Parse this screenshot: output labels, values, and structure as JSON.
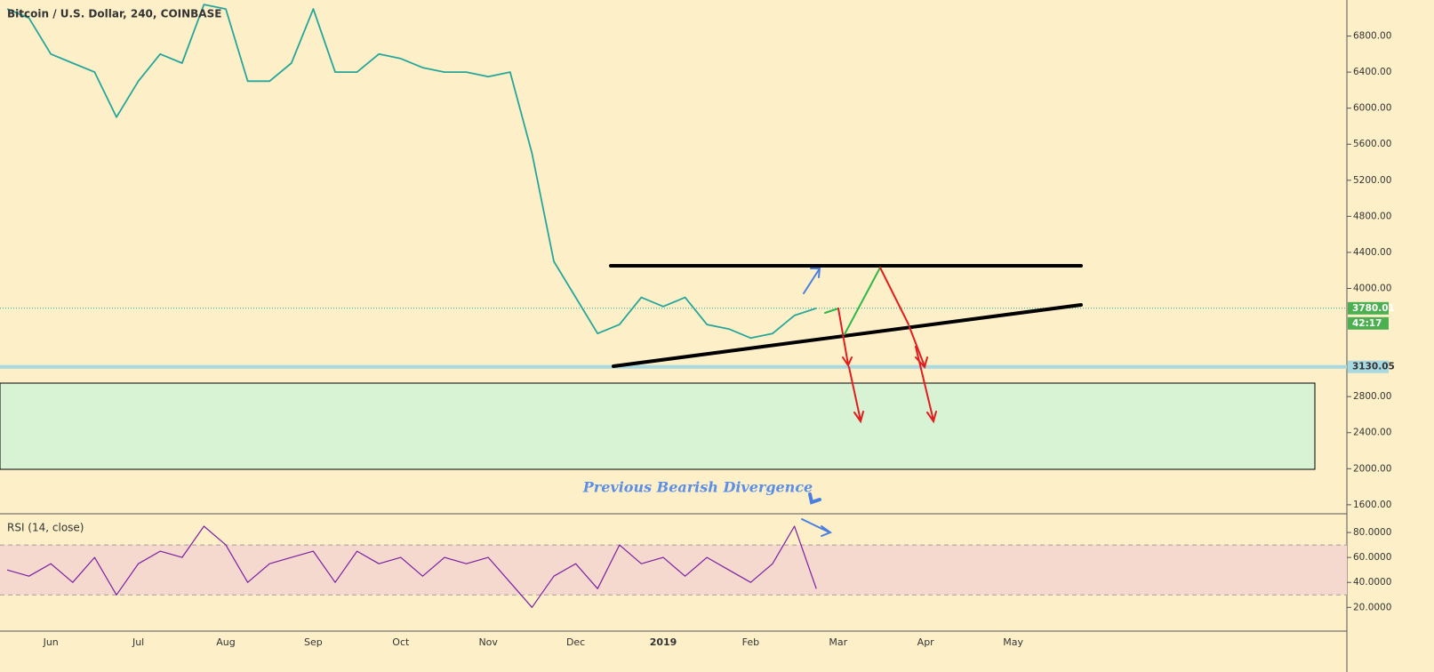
{
  "chart_data": [
    {
      "type": "line",
      "title": "Bitcoin / U.S. Dollar, 240, COINBASE",
      "categories": [
        null,
        null,
        "Jun",
        null,
        null,
        null,
        "Jul",
        null,
        null,
        null,
        "Aug",
        null,
        null,
        null,
        "Sep",
        null,
        null,
        null,
        "Oct",
        null,
        null,
        null,
        "Nov",
        null,
        null,
        null,
        "Dec",
        null,
        null,
        null,
        "2019",
        null,
        null,
        null,
        "Feb",
        null,
        null,
        null,
        "Mar",
        null,
        null,
        null,
        "Apr",
        null,
        null,
        null,
        "May",
        null,
        null,
        null
      ],
      "values": [
        7100,
        7000,
        6600,
        6500,
        6400,
        5900,
        6300,
        6600,
        6500,
        7150,
        7100,
        6300,
        6300,
        6500,
        7100,
        6400,
        6400,
        6600,
        6550,
        6450,
        6400,
        6400,
        6350,
        6400,
        5500,
        4300,
        3900,
        3500,
        3600,
        3900,
        3800,
        3900,
        3600,
        3550,
        3450,
        3500,
        3700,
        3780.01,
        null,
        null,
        null,
        null,
        null,
        null,
        null,
        null,
        null,
        null,
        null,
        null
      ],
      "color": "#26a69a",
      "ylim": [
        1500,
        7200
      ],
      "yticks": [
        {
          "value": 1600,
          "label": "1600.00"
        },
        {
          "value": 2000,
          "label": "2000.00"
        },
        {
          "value": 2400,
          "label": "2400.00"
        },
        {
          "value": 2800,
          "label": "2800.00"
        },
        {
          "value": 4000,
          "label": "4000.00"
        },
        {
          "value": 4400,
          "label": "4400.00"
        },
        {
          "value": 4800,
          "label": "4800.00"
        },
        {
          "value": 5200,
          "label": "5200.00"
        },
        {
          "value": 5600,
          "label": "5600.00"
        },
        {
          "value": 6000,
          "label": "6000.00"
        },
        {
          "value": 6400,
          "label": "6400.00"
        },
        {
          "value": 6800,
          "label": "6800.00"
        }
      ],
      "last_price": 3780.01,
      "countdown": "42:17",
      "support_level": 3130.05,
      "annotation": "Previous Bearish Divergence"
    },
    {
      "type": "line",
      "title": "RSI (14, close)",
      "values": [
        50,
        45,
        55,
        40,
        60,
        30,
        55,
        65,
        60,
        85,
        70,
        40,
        55,
        60,
        65,
        40,
        65,
        55,
        60,
        45,
        60,
        55,
        60,
        40,
        20,
        45,
        55,
        35,
        70,
        55,
        60,
        45,
        60,
        50,
        40,
        55,
        85,
        35,
        null,
        null,
        null,
        null,
        null,
        null,
        null,
        null,
        null,
        null,
        null,
        null
      ],
      "color": "#7b1fa2",
      "ylim": [
        1,
        95
      ],
      "yticks": [
        {
          "value": 20,
          "label": "20.0000"
        },
        {
          "value": 40,
          "label": "40.0000"
        },
        {
          "value": 60,
          "label": "60.0000"
        },
        {
          "value": 80,
          "label": "80.0000"
        }
      ],
      "band": [
        30,
        70
      ]
    }
  ]
}
